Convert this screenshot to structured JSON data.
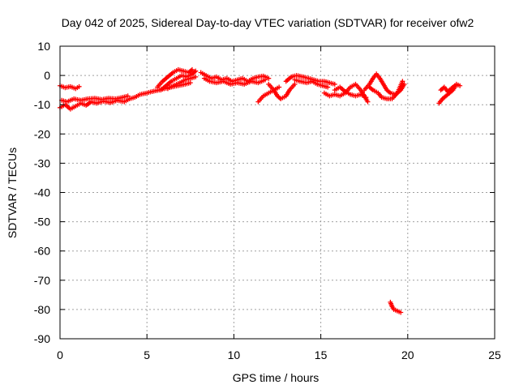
{
  "chart_data": {
    "type": "scatter",
    "title": "Day 042 of 2025, Sidereal Day-to-day VTEC variation (SDTVAR) for receiver ofw2",
    "xlabel": "GPS time / hours",
    "ylabel": "SDTVAR / TECUs",
    "xlim": [
      0,
      25
    ],
    "ylim": [
      -90,
      10
    ],
    "xticks": [
      0,
      5,
      10,
      15,
      20,
      25
    ],
    "yticks": [
      10,
      0,
      -10,
      -20,
      -30,
      -40,
      -50,
      -60,
      -70,
      -80,
      -90
    ],
    "grid": true,
    "legend": "none",
    "series": [
      {
        "name": "SDTVAR",
        "color": "#ff0000",
        "marker": "plus",
        "segments": [
          [
            [
              0.0,
              -3.5
            ],
            [
              0.3,
              -4.2
            ],
            [
              0.6,
              -3.8
            ],
            [
              0.9,
              -4.5
            ],
            [
              1.1,
              -3.8
            ]
          ],
          [
            [
              0.0,
              -11.0
            ],
            [
              0.3,
              -10.0
            ],
            [
              0.6,
              -11.5
            ],
            [
              0.9,
              -10.5
            ],
            [
              1.2,
              -9.5
            ],
            [
              1.5,
              -10.2
            ],
            [
              1.8,
              -9.0
            ],
            [
              2.1,
              -9.5
            ],
            [
              2.5,
              -8.8
            ],
            [
              2.9,
              -9.3
            ],
            [
              3.3,
              -8.5
            ],
            [
              3.7,
              -9.0
            ],
            [
              4.0,
              -8.0
            ],
            [
              4.3,
              -7.5
            ],
            [
              4.6,
              -6.5
            ],
            [
              5.0,
              -6.0
            ],
            [
              5.3,
              -5.5
            ],
            [
              5.7,
              -5.0
            ],
            [
              6.0,
              -4.5
            ],
            [
              6.4,
              -4.0
            ],
            [
              6.8,
              -3.5
            ],
            [
              7.2,
              -3.0
            ],
            [
              7.5,
              -2.5
            ]
          ],
          [
            [
              0.1,
              -8.5
            ],
            [
              0.4,
              -9.0
            ],
            [
              0.8,
              -8.0
            ],
            [
              1.2,
              -8.5
            ],
            [
              1.6,
              -8.0
            ],
            [
              2.0,
              -7.8
            ],
            [
              2.4,
              -8.2
            ],
            [
              2.8,
              -7.8
            ],
            [
              3.2,
              -8.0
            ],
            [
              3.6,
              -7.5
            ],
            [
              3.9,
              -7.0
            ]
          ],
          [
            [
              5.6,
              -4.0
            ],
            [
              5.9,
              -2.0
            ],
            [
              6.2,
              -0.5
            ],
            [
              6.5,
              1.0
            ],
            [
              6.8,
              2.0
            ],
            [
              7.1,
              1.5
            ],
            [
              7.4,
              1.0
            ],
            [
              7.6,
              2.0
            ]
          ],
          [
            [
              5.8,
              -5.0
            ],
            [
              6.1,
              -3.5
            ],
            [
              6.4,
              -2.0
            ],
            [
              6.7,
              -1.0
            ],
            [
              7.0,
              0.0
            ],
            [
              7.3,
              -0.5
            ],
            [
              7.6,
              0.5
            ],
            [
              7.8,
              1.5
            ]
          ],
          [
            [
              6.2,
              -4.5
            ],
            [
              6.5,
              -3.5
            ],
            [
              6.9,
              -2.5
            ],
            [
              7.2,
              -1.5
            ],
            [
              7.5,
              -1.0
            ],
            [
              7.8,
              -0.5
            ]
          ],
          [
            [
              8.1,
              1.0
            ],
            [
              8.4,
              0.0
            ],
            [
              8.7,
              -1.0
            ],
            [
              9.0,
              -0.5
            ],
            [
              9.3,
              -1.5
            ],
            [
              9.6,
              -1.0
            ],
            [
              9.9,
              -2.0
            ],
            [
              10.2,
              -1.5
            ],
            [
              10.5,
              -1.0
            ],
            [
              10.8,
              -2.0
            ],
            [
              11.1,
              -1.0
            ],
            [
              11.4,
              -0.5
            ],
            [
              11.7,
              -0.2
            ],
            [
              12.0,
              -1.0
            ]
          ],
          [
            [
              8.3,
              -1.0
            ],
            [
              8.6,
              -2.0
            ],
            [
              9.0,
              -2.5
            ],
            [
              9.4,
              -2.0
            ],
            [
              9.8,
              -3.0
            ],
            [
              10.2,
              -2.5
            ],
            [
              10.6,
              -3.0
            ],
            [
              11.0,
              -2.0
            ],
            [
              11.4,
              -2.5
            ],
            [
              11.8,
              -1.5
            ]
          ],
          [
            [
              11.4,
              -9.0
            ],
            [
              11.7,
              -7.0
            ],
            [
              12.0,
              -6.0
            ],
            [
              12.3,
              -5.0
            ],
            [
              12.6,
              -4.0
            ]
          ],
          [
            [
              12.0,
              -3.0
            ],
            [
              12.3,
              -5.0
            ],
            [
              12.5,
              -7.0
            ],
            [
              12.7,
              -8.0
            ],
            [
              13.0,
              -7.0
            ],
            [
              13.2,
              -5.0
            ],
            [
              13.5,
              -3.0
            ]
          ],
          [
            [
              13.0,
              -2.0
            ],
            [
              13.3,
              -0.5
            ],
            [
              13.6,
              0.0
            ],
            [
              14.0,
              -0.5
            ],
            [
              14.3,
              -1.0
            ],
            [
              14.6,
              -1.5
            ],
            [
              14.9,
              -2.0
            ],
            [
              15.2,
              -2.0
            ],
            [
              15.5,
              -2.5
            ],
            [
              15.8,
              -3.0
            ]
          ],
          [
            [
              13.5,
              -1.5
            ],
            [
              13.8,
              -2.0
            ],
            [
              14.2,
              -2.5
            ],
            [
              14.5,
              -2.0
            ],
            [
              14.8,
              -3.0
            ],
            [
              15.1,
              -3.5
            ],
            [
              15.4,
              -4.0
            ]
          ],
          [
            [
              15.2,
              -6.0
            ],
            [
              15.5,
              -7.0
            ],
            [
              15.8,
              -6.5
            ],
            [
              16.1,
              -7.0
            ],
            [
              16.4,
              -6.0
            ],
            [
              16.7,
              -4.0
            ],
            [
              17.0,
              -3.0
            ],
            [
              17.3,
              -5.0
            ],
            [
              17.5,
              -7.0
            ],
            [
              17.7,
              -9.0
            ]
          ],
          [
            [
              15.8,
              -5.0
            ],
            [
              16.1,
              -4.0
            ],
            [
              16.4,
              -5.5
            ],
            [
              16.7,
              -6.5
            ],
            [
              17.0,
              -7.0
            ],
            [
              17.3,
              -6.5
            ],
            [
              17.6,
              -7.5
            ]
          ],
          [
            [
              17.5,
              -5.0
            ],
            [
              17.8,
              -3.0
            ],
            [
              18.0,
              -1.0
            ],
            [
              18.2,
              0.5
            ],
            [
              18.4,
              -1.0
            ],
            [
              18.6,
              -3.0
            ],
            [
              18.8,
              -5.0
            ],
            [
              19.0,
              -6.0
            ],
            [
              19.3,
              -6.5
            ],
            [
              19.6,
              -5.0
            ],
            [
              19.8,
              -3.0
            ]
          ],
          [
            [
              17.8,
              -4.0
            ],
            [
              18.0,
              -5.0
            ],
            [
              18.3,
              -6.0
            ],
            [
              18.5,
              -7.5
            ],
            [
              18.8,
              -8.0
            ],
            [
              19.1,
              -8.0
            ],
            [
              19.4,
              -6.0
            ],
            [
              19.7,
              -2.0
            ]
          ],
          [
            [
              19.0,
              -77.5
            ],
            [
              19.1,
              -79.0
            ],
            [
              19.2,
              -80.0
            ],
            [
              19.4,
              -80.5
            ],
            [
              19.6,
              -81.0
            ]
          ],
          [
            [
              21.8,
              -9.5
            ],
            [
              22.0,
              -8.0
            ],
            [
              22.2,
              -7.0
            ],
            [
              22.4,
              -6.0
            ],
            [
              22.6,
              -5.0
            ],
            [
              22.8,
              -3.0
            ],
            [
              23.0,
              -3.5
            ]
          ],
          [
            [
              21.9,
              -5.0
            ],
            [
              22.1,
              -4.0
            ],
            [
              22.3,
              -5.5
            ],
            [
              22.5,
              -4.5
            ],
            [
              22.7,
              -3.5
            ]
          ]
        ]
      }
    ]
  }
}
